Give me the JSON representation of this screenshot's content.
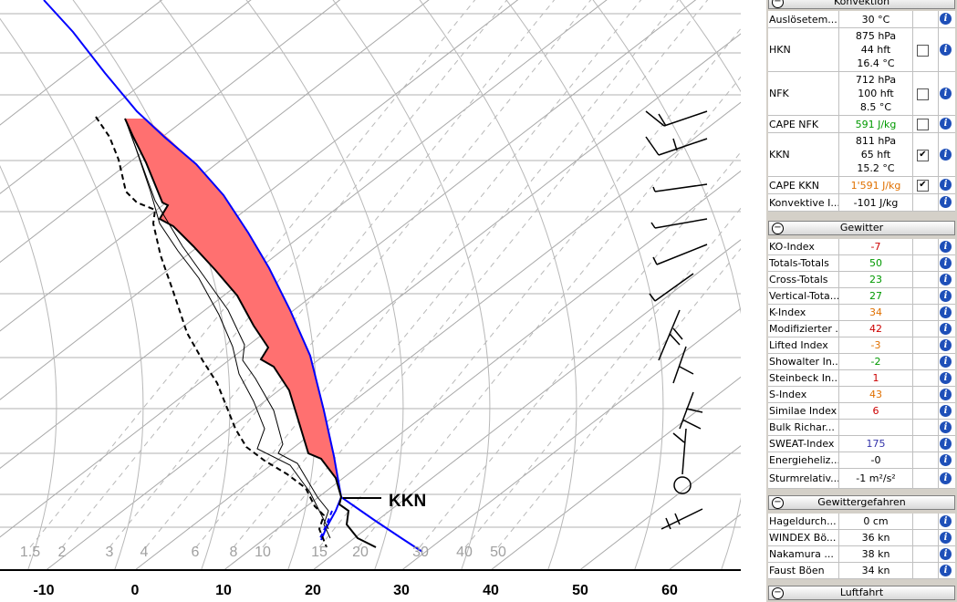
{
  "chart_data": {
    "type": "skew-t",
    "x_axis_ticks": [
      "-10",
      "0",
      "10",
      "20",
      "30",
      "40",
      "50",
      "60"
    ],
    "mixing_ratio_labels": [
      "1.5",
      "2",
      "3",
      "4",
      "6",
      "8",
      "10",
      "15",
      "20",
      "30",
      "40",
      "50"
    ],
    "annotation": "KKN",
    "colors": {
      "parcel": "#0000ff",
      "cape_fill": "#ff7070",
      "temperature": "#000000",
      "dewpoint": "#000000",
      "grid": "#a8a8a8"
    }
  },
  "panel": {
    "sections": [
      {
        "title": "Konvektion",
        "rows": [
          {
            "label": "Auslösetem...",
            "value": "30 °C",
            "check": "none"
          },
          {
            "label": "HKN",
            "value": "875 hPa\n44 hft\n16.4 °C",
            "check": "off"
          },
          {
            "label": "NFK",
            "value": "712 hPa\n100 hft\n8.5 °C",
            "check": "off"
          },
          {
            "label": "CAPE NFK",
            "value": "591 J/kg",
            "color": "#009900",
            "check": "off"
          },
          {
            "label": "KKN",
            "value": "811 hPa\n65 hft\n15.2 °C",
            "check": "on"
          },
          {
            "label": "CAPE KKN",
            "value": "1'591 J/kg",
            "color": "#e07000",
            "check": "on"
          },
          {
            "label": "Konvektive I...",
            "value": "-101 J/kg",
            "check": "none"
          }
        ]
      },
      {
        "title": "Gewitter",
        "rows": [
          {
            "label": "KO-Index",
            "value": "-7",
            "color": "#cc0000",
            "check": "none"
          },
          {
            "label": "Totals-Totals",
            "value": "50",
            "color": "#009900",
            "check": "none"
          },
          {
            "label": "Cross-Totals",
            "value": "23",
            "color": "#009900",
            "check": "none"
          },
          {
            "label": "Vertical-Tota...",
            "value": "27",
            "color": "#009900",
            "check": "none"
          },
          {
            "label": "K-Index",
            "value": "34",
            "color": "#e07000",
            "check": "none"
          },
          {
            "label": "Modifizierter ...",
            "value": "42",
            "color": "#cc0000",
            "check": "none"
          },
          {
            "label": "Lifted Index",
            "value": "-3",
            "color": "#e07000",
            "check": "none"
          },
          {
            "label": "Showalter In...",
            "value": "-2",
            "color": "#009900",
            "check": "none"
          },
          {
            "label": "Steinbeck In...",
            "value": "1",
            "color": "#cc0000",
            "check": "none"
          },
          {
            "label": "S-Index",
            "value": "43",
            "color": "#e07000",
            "check": "none"
          },
          {
            "label": "Similae Index",
            "value": "6",
            "color": "#cc0000",
            "check": "none"
          },
          {
            "label": "Bulk Richar...",
            "value": "",
            "check": "none"
          },
          {
            "label": "SWEAT-Index",
            "value": "175",
            "color": "#3333aa",
            "check": "none"
          },
          {
            "label": "Energieheliz...",
            "value": "-0",
            "check": "none"
          },
          {
            "label": "Sturmrelativ...",
            "value": "-1 m²/s²",
            "check": "none"
          }
        ]
      },
      {
        "title": "Gewittergefahren",
        "rows": [
          {
            "label": "Hageldurch...",
            "value": "0 cm",
            "check": "none"
          },
          {
            "label": "WINDEX Bö...",
            "value": "36 kn",
            "check": "none"
          },
          {
            "label": "Nakamura ...",
            "value": "38 kn",
            "check": "none"
          },
          {
            "label": "Faust Böen",
            "value": "34 kn",
            "check": "none"
          }
        ]
      },
      {
        "title": "Luftfahrt",
        "rows": []
      }
    ]
  }
}
